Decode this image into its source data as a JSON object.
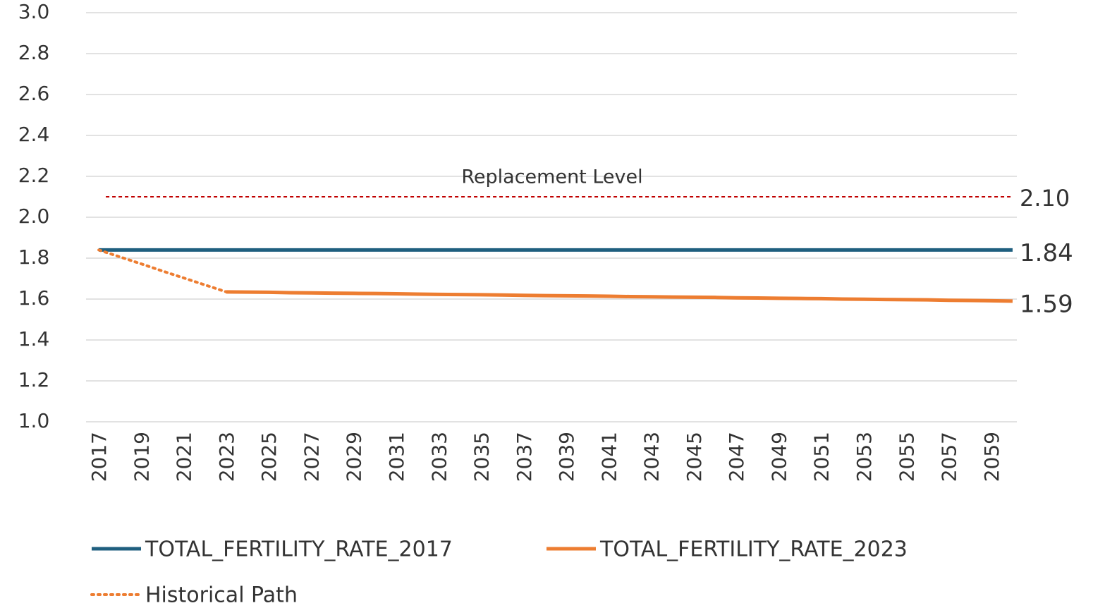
{
  "chart_data": {
    "type": "line",
    "x": [
      2017,
      2018,
      2019,
      2020,
      2021,
      2022,
      2023,
      2024,
      2025,
      2026,
      2027,
      2028,
      2029,
      2030,
      2031,
      2032,
      2033,
      2034,
      2035,
      2036,
      2037,
      2038,
      2039,
      2040,
      2041,
      2042,
      2043,
      2044,
      2045,
      2046,
      2047,
      2048,
      2049,
      2050,
      2051,
      2052,
      2053,
      2054,
      2055,
      2056,
      2057,
      2058,
      2059,
      2060
    ],
    "series": [
      {
        "name": "TOTAL_FERTILITY_RATE_2017",
        "color": "#1f5f7f",
        "style": "solid",
        "values": [
          1.84,
          1.84,
          1.84,
          1.84,
          1.84,
          1.84,
          1.84,
          1.84,
          1.84,
          1.84,
          1.84,
          1.84,
          1.84,
          1.84,
          1.84,
          1.84,
          1.84,
          1.84,
          1.84,
          1.84,
          1.84,
          1.84,
          1.84,
          1.84,
          1.84,
          1.84,
          1.84,
          1.84,
          1.84,
          1.84,
          1.84,
          1.84,
          1.84,
          1.84,
          1.84,
          1.84,
          1.84,
          1.84,
          1.84,
          1.84,
          1.84,
          1.84,
          1.84,
          1.84
        ],
        "value_labels": [
          null,
          null,
          null,
          null,
          null,
          null,
          null,
          null,
          null,
          null,
          null,
          null,
          null,
          null,
          null,
          null,
          null,
          null,
          null,
          null,
          null,
          null,
          null,
          null,
          null,
          null,
          null,
          null,
          null,
          null,
          null,
          null,
          null,
          null,
          null,
          null,
          null,
          null,
          null,
          null,
          null,
          null,
          null,
          "1.84"
        ]
      },
      {
        "name": "TOTAL_FERTILITY_RATE_2023",
        "color": "#ed7d31",
        "style": "solid",
        "values": [
          null,
          null,
          null,
          null,
          null,
          null,
          1.635,
          1.634,
          1.633,
          1.631,
          1.63,
          1.629,
          1.628,
          1.627,
          1.626,
          1.624,
          1.623,
          1.622,
          1.621,
          1.62,
          1.618,
          1.617,
          1.616,
          1.615,
          1.614,
          1.612,
          1.611,
          1.61,
          1.609,
          1.608,
          1.606,
          1.605,
          1.604,
          1.603,
          1.602,
          1.6,
          1.599,
          1.598,
          1.597,
          1.596,
          1.594,
          1.593,
          1.592,
          1.59
        ],
        "value_labels": [
          null,
          null,
          null,
          null,
          null,
          null,
          null,
          null,
          null,
          null,
          null,
          null,
          null,
          null,
          null,
          null,
          null,
          null,
          null,
          null,
          null,
          null,
          null,
          null,
          null,
          null,
          null,
          null,
          null,
          null,
          null,
          null,
          null,
          null,
          null,
          null,
          null,
          null,
          null,
          null,
          null,
          null,
          null,
          "1.59"
        ]
      },
      {
        "name": "Historical Path",
        "color": "#ed7d31",
        "style": "dotted",
        "values": [
          1.84,
          1.806,
          1.772,
          1.737,
          1.703,
          1.669,
          1.635,
          null,
          null,
          null,
          null,
          null,
          null,
          null,
          null,
          null,
          null,
          null,
          null,
          null,
          null,
          null,
          null,
          null,
          null,
          null,
          null,
          null,
          null,
          null,
          null,
          null,
          null,
          null,
          null,
          null,
          null,
          null,
          null,
          null,
          null,
          null,
          null,
          null
        ]
      }
    ],
    "reference": {
      "label": "Replacement Level",
      "value": 2.1,
      "value_label": "2.10",
      "color": "#c00000"
    },
    "xlim": [
      2016.4,
      2060.2
    ],
    "xticks": [
      2017,
      2019,
      2021,
      2023,
      2025,
      2027,
      2029,
      2031,
      2033,
      2035,
      2037,
      2039,
      2041,
      2043,
      2045,
      2047,
      2049,
      2051,
      2053,
      2055,
      2057,
      2059
    ],
    "ylim": [
      1.0,
      3.0
    ],
    "yticks": [
      {
        "value": 1,
        "label": "1.0"
      },
      1.2,
      1.4,
      1.6,
      1.8,
      {
        "value": 2,
        "label": "2.0"
      },
      2.2,
      2.4,
      2.6,
      2.8,
      {
        "value": 3,
        "label": "3.0"
      }
    ],
    "grid": true
  }
}
